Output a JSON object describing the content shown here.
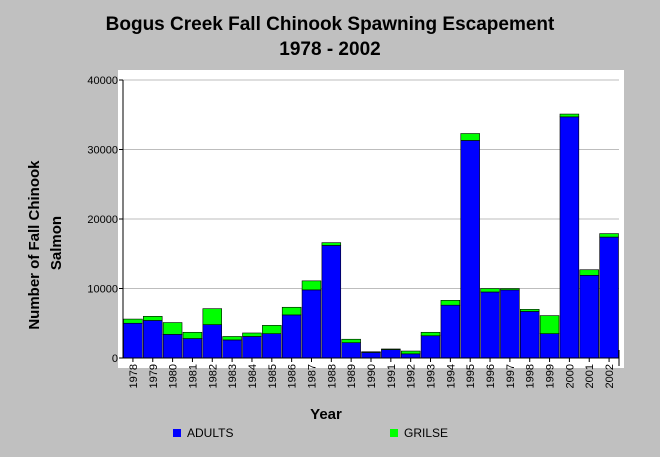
{
  "chart_data": {
    "type": "bar",
    "stacked": true,
    "title": "Bogus Creek Fall Chinook Spawning Escapement",
    "subtitle": "1978 - 2002",
    "xlabel": "Year",
    "ylabel": "Number of Fall Chinook Salmon",
    "ylim": [
      0,
      40000
    ],
    "yticks": [
      "0",
      "10000",
      "20000",
      "30000",
      "40000"
    ],
    "grid": true,
    "legend_position": "bottom",
    "categories": [
      "1978",
      "1979",
      "1980",
      "1981",
      "1982",
      "1983",
      "1984",
      "1985",
      "1986",
      "1987",
      "1988",
      "1989",
      "1990",
      "1991",
      "1992",
      "1993",
      "1994",
      "1995",
      "1996",
      "1997",
      "1998",
      "1999",
      "2000",
      "2001",
      "2002"
    ],
    "series": [
      {
        "name": "ADULTS",
        "color": "#0000ff",
        "values": [
          5000,
          5400,
          3400,
          2800,
          4800,
          2600,
          3100,
          3500,
          6200,
          9800,
          16200,
          2200,
          800,
          1200,
          600,
          3200,
          7600,
          31300,
          9500,
          9800,
          6700,
          3500,
          34700,
          11900,
          17400
        ]
      },
      {
        "name": "GRILSE",
        "color": "#00ff00",
        "values": [
          600,
          600,
          1700,
          900,
          2300,
          500,
          500,
          1200,
          1100,
          1300,
          400,
          500,
          100,
          100,
          400,
          500,
          700,
          1000,
          500,
          200,
          300,
          2600,
          400,
          800,
          500
        ]
      }
    ]
  }
}
